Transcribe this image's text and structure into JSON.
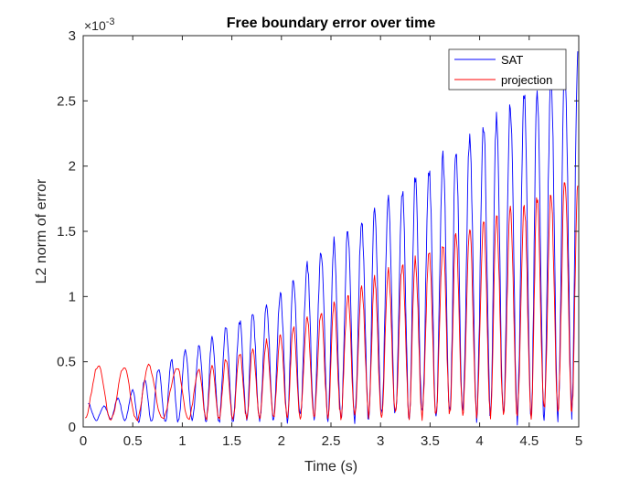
{
  "chart_data": {
    "type": "line",
    "title": "Free boundary error over time",
    "xlabel": "Time (s)",
    "ylabel": "L2 norm of error",
    "xlim": [
      0,
      5
    ],
    "ylim": [
      0,
      0.003
    ],
    "x_ticks": [
      0,
      0.5,
      1,
      1.5,
      2,
      2.5,
      3,
      3.5,
      4,
      4.5,
      5
    ],
    "x_tick_labels": [
      "0",
      "0.5",
      "1",
      "1.5",
      "2",
      "2.5",
      "3",
      "3.5",
      "4",
      "4.5",
      "5"
    ],
    "y_ticks": [
      0,
      0.0005,
      0.001,
      0.0015,
      0.002,
      0.0025,
      0.003
    ],
    "y_tick_labels": [
      "0",
      "0.5",
      "1",
      "1.5",
      "2",
      "2.5",
      "3"
    ],
    "y_exponent_label": "×10",
    "y_exponent_power": "-3",
    "legend_position": "top-right",
    "grid": false,
    "series": [
      {
        "name": "SAT",
        "color": "#0000ff",
        "description": "oscillating envelope growing from ~0.0002 to ~0.0029, roughly 35 peaks over 0–5 s",
        "peaks": [
          {
            "x": 0.05,
            "y": 0.00018
          },
          {
            "x": 0.21,
            "y": 0.00016
          },
          {
            "x": 0.35,
            "y": 0.00022
          },
          {
            "x": 0.5,
            "y": 0.00028
          },
          {
            "x": 0.62,
            "y": 0.00036
          },
          {
            "x": 0.76,
            "y": 0.00045
          },
          {
            "x": 0.89,
            "y": 0.00052
          },
          {
            "x": 1.03,
            "y": 0.00058
          },
          {
            "x": 1.17,
            "y": 0.00062
          },
          {
            "x": 1.3,
            "y": 0.00068
          },
          {
            "x": 1.44,
            "y": 0.00076
          },
          {
            "x": 1.58,
            "y": 0.00081
          },
          {
            "x": 1.71,
            "y": 0.00088
          },
          {
            "x": 1.85,
            "y": 0.00093
          },
          {
            "x": 1.99,
            "y": 0.00103
          },
          {
            "x": 2.12,
            "y": 0.00115
          },
          {
            "x": 2.26,
            "y": 0.00125
          },
          {
            "x": 2.4,
            "y": 0.00135
          },
          {
            "x": 2.53,
            "y": 0.00142
          },
          {
            "x": 2.67,
            "y": 0.0015
          },
          {
            "x": 2.81,
            "y": 0.00158
          },
          {
            "x": 2.94,
            "y": 0.00166
          },
          {
            "x": 3.08,
            "y": 0.00174
          },
          {
            "x": 3.22,
            "y": 0.00182
          },
          {
            "x": 3.35,
            "y": 0.0019
          },
          {
            "x": 3.49,
            "y": 0.00198
          },
          {
            "x": 3.63,
            "y": 0.00206
          },
          {
            "x": 3.76,
            "y": 0.00214
          },
          {
            "x": 3.9,
            "y": 0.00222
          },
          {
            "x": 4.04,
            "y": 0.0023
          },
          {
            "x": 4.17,
            "y": 0.00238
          },
          {
            "x": 4.31,
            "y": 0.00246
          },
          {
            "x": 4.45,
            "y": 0.00254
          },
          {
            "x": 4.58,
            "y": 0.00262
          },
          {
            "x": 4.72,
            "y": 0.0027
          },
          {
            "x": 4.86,
            "y": 0.00278
          },
          {
            "x": 4.99,
            "y": 0.00288
          }
        ],
        "troughs": [
          {
            "x": 0.13,
            "y": 5e-05
          },
          {
            "x": 0.28,
            "y": 6e-05
          },
          {
            "x": 0.42,
            "y": 5e-05
          },
          {
            "x": 0.56,
            "y": 4e-05
          },
          {
            "x": 0.69,
            "y": 4e-05
          },
          {
            "x": 0.83,
            "y": 3e-05
          },
          {
            "x": 0.96,
            "y": 4e-05
          },
          {
            "x": 1.1,
            "y": 5e-05
          },
          {
            "x": 1.24,
            "y": 4e-05
          },
          {
            "x": 1.37,
            "y": 4e-05
          },
          {
            "x": 1.51,
            "y": 4e-05
          },
          {
            "x": 1.65,
            "y": 6e-05
          },
          {
            "x": 1.78,
            "y": 5e-05
          },
          {
            "x": 1.92,
            "y": 6e-05
          },
          {
            "x": 2.06,
            "y": 6e-05
          },
          {
            "x": 2.19,
            "y": 7e-05
          },
          {
            "x": 2.33,
            "y": 6e-05
          },
          {
            "x": 2.47,
            "y": 7e-05
          },
          {
            "x": 2.6,
            "y": 6e-05
          },
          {
            "x": 2.74,
            "y": 7e-05
          },
          {
            "x": 2.88,
            "y": 7e-05
          },
          {
            "x": 3.01,
            "y": 8e-05
          },
          {
            "x": 3.15,
            "y": 8e-05
          },
          {
            "x": 3.29,
            "y": 8e-05
          },
          {
            "x": 3.42,
            "y": 8e-05
          },
          {
            "x": 3.56,
            "y": 9e-05
          },
          {
            "x": 3.7,
            "y": 8e-05
          },
          {
            "x": 3.83,
            "y": 9e-05
          },
          {
            "x": 3.97,
            "y": 9e-05
          },
          {
            "x": 4.11,
            "y": 9e-05
          },
          {
            "x": 4.24,
            "y": 0.0001
          },
          {
            "x": 4.38,
            "y": 9e-05
          },
          {
            "x": 4.52,
            "y": 0.0001
          },
          {
            "x": 4.65,
            "y": 0.0001
          },
          {
            "x": 4.79,
            "y": 0.0001
          },
          {
            "x": 4.93,
            "y": 0.00011
          }
        ]
      },
      {
        "name": "projection",
        "color": "#ff0000",
        "description": "oscillating envelope growing from ~0.0004 to ~0.0019, roughly 35 peaks over 0–5 s",
        "peaks": [
          {
            "x": 0.15,
            "y": 0.00047
          },
          {
            "x": 0.41,
            "y": 0.00046
          },
          {
            "x": 0.66,
            "y": 0.00047
          },
          {
            "x": 0.95,
            "y": 0.00045
          },
          {
            "x": 1.17,
            "y": 0.00043
          },
          {
            "x": 1.3,
            "y": 0.00048
          },
          {
            "x": 1.44,
            "y": 0.00052
          },
          {
            "x": 1.58,
            "y": 0.00057
          },
          {
            "x": 1.71,
            "y": 0.0006
          },
          {
            "x": 1.85,
            "y": 0.00066
          },
          {
            "x": 1.99,
            "y": 0.0007
          },
          {
            "x": 2.12,
            "y": 0.00077
          },
          {
            "x": 2.26,
            "y": 0.00083
          },
          {
            "x": 2.4,
            "y": 0.00088
          },
          {
            "x": 2.53,
            "y": 0.00095
          },
          {
            "x": 2.67,
            "y": 0.00101
          },
          {
            "x": 2.81,
            "y": 0.00108
          },
          {
            "x": 2.94,
            "y": 0.00113
          },
          {
            "x": 3.08,
            "y": 0.00119
          },
          {
            "x": 3.22,
            "y": 0.00124
          },
          {
            "x": 3.35,
            "y": 0.0013
          },
          {
            "x": 3.49,
            "y": 0.00135
          },
          {
            "x": 3.63,
            "y": 0.00141
          },
          {
            "x": 3.76,
            "y": 0.00147
          },
          {
            "x": 3.9,
            "y": 0.00152
          },
          {
            "x": 4.04,
            "y": 0.00157
          },
          {
            "x": 4.17,
            "y": 0.00162
          },
          {
            "x": 4.31,
            "y": 0.00166
          },
          {
            "x": 4.45,
            "y": 0.0017
          },
          {
            "x": 4.58,
            "y": 0.00175
          },
          {
            "x": 4.72,
            "y": 0.00179
          },
          {
            "x": 4.86,
            "y": 0.00189
          },
          {
            "x": 4.99,
            "y": 0.00185
          }
        ],
        "troughs": [
          {
            "x": 0.02,
            "y": 8e-05
          },
          {
            "x": 0.28,
            "y": 6e-05
          },
          {
            "x": 0.54,
            "y": 5e-05
          },
          {
            "x": 0.8,
            "y": 6e-05
          },
          {
            "x": 1.06,
            "y": 6e-05
          },
          {
            "x": 1.24,
            "y": 6e-05
          },
          {
            "x": 1.37,
            "y": 6e-05
          },
          {
            "x": 1.51,
            "y": 6e-05
          },
          {
            "x": 1.65,
            "y": 7e-05
          },
          {
            "x": 1.78,
            "y": 7e-05
          },
          {
            "x": 1.92,
            "y": 7e-05
          },
          {
            "x": 2.06,
            "y": 7e-05
          },
          {
            "x": 2.19,
            "y": 8e-05
          },
          {
            "x": 2.33,
            "y": 8e-05
          },
          {
            "x": 2.47,
            "y": 8e-05
          },
          {
            "x": 2.6,
            "y": 8e-05
          },
          {
            "x": 2.74,
            "y": 8e-05
          },
          {
            "x": 2.88,
            "y": 9e-05
          },
          {
            "x": 3.01,
            "y": 9e-05
          },
          {
            "x": 3.15,
            "y": 9e-05
          },
          {
            "x": 3.29,
            "y": 9e-05
          },
          {
            "x": 3.42,
            "y": 9e-05
          },
          {
            "x": 3.56,
            "y": 0.0001
          },
          {
            "x": 3.7,
            "y": 0.0001
          },
          {
            "x": 3.83,
            "y": 0.0001
          },
          {
            "x": 3.97,
            "y": 0.0001
          },
          {
            "x": 4.11,
            "y": 0.0001
          },
          {
            "x": 4.24,
            "y": 0.00011
          },
          {
            "x": 4.38,
            "y": 0.00011
          },
          {
            "x": 4.52,
            "y": 0.00011
          },
          {
            "x": 4.65,
            "y": 0.00011
          },
          {
            "x": 4.79,
            "y": 0.00012
          },
          {
            "x": 4.93,
            "y": 0.00012
          }
        ]
      }
    ]
  }
}
